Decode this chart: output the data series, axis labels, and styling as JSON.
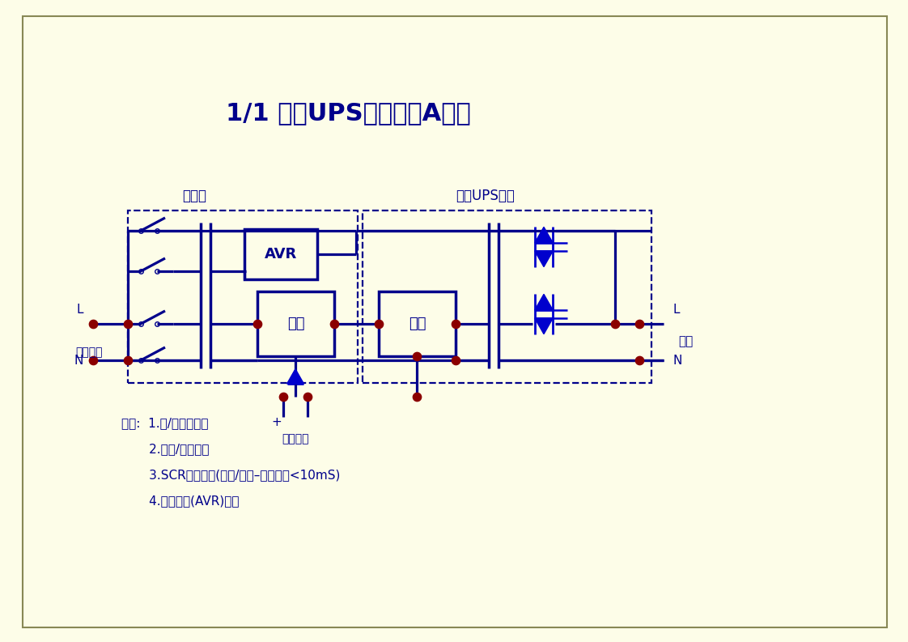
{
  "title": "1/1 电力UPS标准配置A方案",
  "background_color": "#FDFDE8",
  "line_color": "#00008B",
  "dot_color": "#8B0000",
  "label_bypass": "旁路柜",
  "label_ups": "电力UPS主柜",
  "label_L_in": "L",
  "label_N_in": "N",
  "label_input": "市电输入",
  "label_L_out": "L",
  "label_N_out": "N",
  "label_load": "负载",
  "label_dc": "至直流屏",
  "label_AVR": "AVR",
  "label_rectifier": "整流",
  "label_inverter": "逆变",
  "feat1": "特点:  1.交/直流全隔离",
  "feat2": "       2.输入/输出隔离",
  "feat3": "       3.SCR静态开关(旁路/逆变–切换时间<10mS)",
  "feat4": "       4.旁路稳压(AVR)输出"
}
